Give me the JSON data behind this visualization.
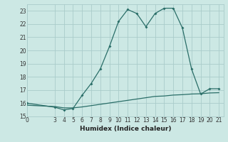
{
  "xlabel": "Humidex (Indice chaleur)",
  "xlim": [
    0,
    21.5
  ],
  "ylim": [
    15,
    23.5
  ],
  "xticks": [
    0,
    3,
    4,
    5,
    6,
    7,
    8,
    9,
    10,
    11,
    12,
    13,
    14,
    15,
    16,
    17,
    18,
    19,
    20,
    21
  ],
  "yticks": [
    15,
    16,
    17,
    18,
    19,
    20,
    21,
    22,
    23
  ],
  "bg_color": "#cce8e4",
  "grid_color": "#aaccca",
  "line_color": "#2a6e68",
  "line1_x": [
    0,
    3,
    4,
    5,
    6,
    7,
    8,
    9,
    10,
    11,
    12,
    13,
    14,
    15,
    16,
    17,
    18,
    19,
    20,
    21
  ],
  "line1_y": [
    16.0,
    15.7,
    15.5,
    15.6,
    16.6,
    17.5,
    18.6,
    20.3,
    22.2,
    23.1,
    22.8,
    21.8,
    22.8,
    23.2,
    23.2,
    21.7,
    18.6,
    16.7,
    17.1,
    17.1
  ],
  "line2_x": [
    0,
    3,
    4,
    5,
    6,
    7,
    8,
    9,
    10,
    11,
    12,
    13,
    14,
    15,
    16,
    17,
    18,
    19,
    20,
    21
  ],
  "line2_y": [
    15.85,
    15.75,
    15.65,
    15.65,
    15.72,
    15.82,
    15.92,
    16.02,
    16.12,
    16.22,
    16.32,
    16.42,
    16.52,
    16.55,
    16.62,
    16.65,
    16.7,
    16.72,
    16.78,
    16.8
  ]
}
